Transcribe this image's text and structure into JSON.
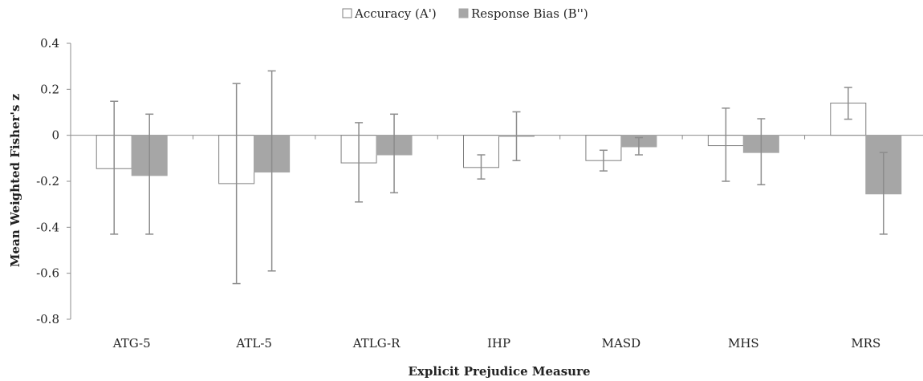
{
  "chart_data": {
    "type": "bar",
    "title": "",
    "xlabel": "Explicit Prejudice Measure",
    "ylabel": "Mean Weighted Fisher's z",
    "ylim": [
      -0.8,
      0.4
    ],
    "yticks": [
      0.4,
      0.2,
      0,
      -0.2,
      -0.4,
      -0.6,
      -0.8
    ],
    "ytick_labels": [
      "0.4",
      "0.2",
      "0",
      "-0.2",
      "-0.4",
      "-0.6",
      "-0.8"
    ],
    "grid": false,
    "legend_position": "top-center",
    "categories": [
      "ATG-5",
      "ATL-5",
      "ATLG-R",
      "IHP",
      "MASD",
      "MHS",
      "MRS"
    ],
    "series": [
      {
        "name": "Accuracy (A')",
        "color": "#ffffff",
        "edge_color": "#7f7f7f",
        "values": [
          -0.145,
          -0.21,
          -0.12,
          -0.14,
          -0.11,
          -0.045,
          0.14
        ],
        "error_low": [
          -0.43,
          -0.645,
          -0.29,
          -0.19,
          -0.155,
          -0.2,
          0.07
        ],
        "error_high": [
          0.148,
          0.225,
          0.055,
          -0.085,
          -0.065,
          0.118,
          0.208
        ]
      },
      {
        "name": "Response Bias (B'')",
        "color": "#a6a6a6",
        "edge_color": "#a6a6a6",
        "values": [
          -0.175,
          -0.16,
          -0.085,
          -0.005,
          -0.05,
          -0.075,
          -0.255
        ],
        "error_low": [
          -0.43,
          -0.59,
          -0.25,
          -0.11,
          -0.085,
          -0.215,
          -0.43
        ],
        "error_high": [
          0.092,
          0.28,
          0.092,
          0.102,
          -0.01,
          0.072,
          -0.075
        ]
      }
    ]
  }
}
